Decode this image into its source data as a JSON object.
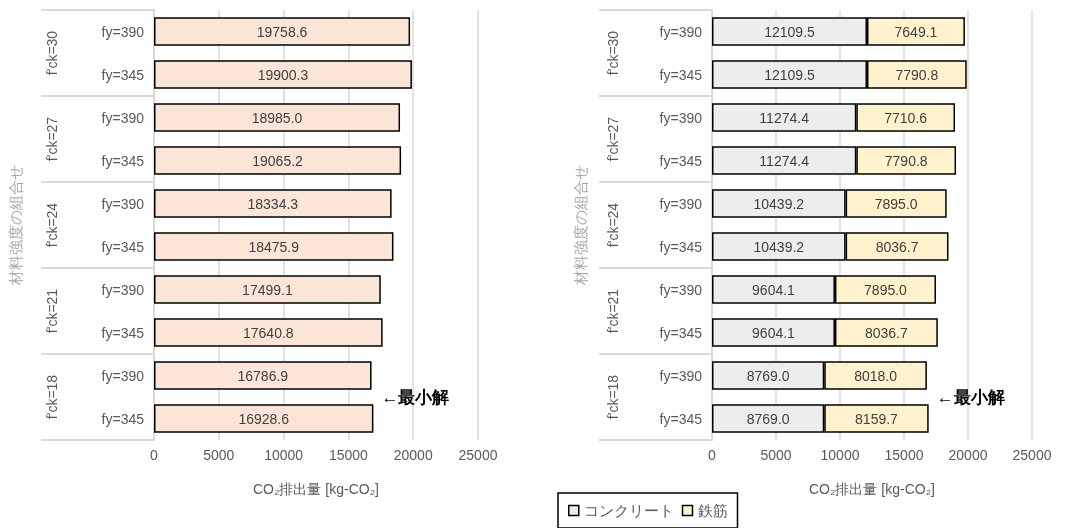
{
  "chart_data": [
    {
      "type": "bar",
      "orientation": "horizontal",
      "xlabel": "CO₂排出量 [kg-CO₂]",
      "ylabel": "材料強度の組合せ",
      "categories": [
        "fy=390",
        "fy=345",
        "fy=390",
        "fy=345",
        "fy=390",
        "fy=345",
        "fy=390",
        "fy=345",
        "fy=390",
        "fy=345"
      ],
      "values": [
        19758.6,
        19900.3,
        18985.0,
        19065.2,
        18334.3,
        18475.9,
        17499.1,
        17640.8,
        16786.9,
        16928.6
      ],
      "value_labels": [
        "19758.6",
        "19900.3",
        "18985.0",
        "19065.2",
        "18334.3",
        "18475.9",
        "17499.1",
        "17640.8",
        "16786.9",
        "16928.6"
      ],
      "color": "#fbe5d6",
      "xlim": [
        0,
        25000
      ],
      "xticks": [
        0,
        5000,
        10000,
        15000,
        20000,
        25000
      ],
      "grid": "x",
      "annotations": [
        "f'ck=30",
        "f'ck=27",
        "f'ck=24",
        "f'ck=21",
        "f'ck=18",
        "←最小解"
      ]
    },
    {
      "type": "bar",
      "orientation": "horizontal",
      "stacked": true,
      "xlabel": "CO₂排出量 [kg-CO₂]",
      "ylabel": "材料強度の組合せ",
      "categories": [
        "fy=390",
        "fy=345",
        "fy=390",
        "fy=345",
        "fy=390",
        "fy=345",
        "fy=390",
        "fy=345",
        "fy=390",
        "fy=345"
      ],
      "series": [
        {
          "name": "コンクリート",
          "color": "#ededed",
          "values": [
            12109.5,
            12109.5,
            11274.4,
            11274.4,
            10439.2,
            10439.2,
            9604.1,
            9604.1,
            8769.0,
            8769.0
          ],
          "value_labels": [
            "12109.5",
            "12109.5",
            "11274.4",
            "11274.4",
            "10439.2",
            "10439.2",
            "9604.1",
            "9604.1",
            "8769.0",
            "8769.0"
          ]
        },
        {
          "name": "鉄筋",
          "color": "#fff2cc",
          "values": [
            7649.1,
            7790.8,
            7710.6,
            7790.8,
            7895.0,
            8036.7,
            7895.0,
            8036.7,
            8018.0,
            8159.7
          ],
          "value_labels": [
            "7649.1",
            "7790.8",
            "7710.6",
            "7790.8",
            "7895.0",
            "8036.7",
            "7895.0",
            "8036.7",
            "8018.0",
            "8159.7"
          ]
        }
      ],
      "xlim": [
        0,
        25000
      ],
      "xticks": [
        0,
        5000,
        10000,
        15000,
        20000,
        25000
      ],
      "grid": "x",
      "legend": "bottom left",
      "annotations": [
        "f'ck=30",
        "f'ck=27",
        "f'ck=24",
        "f'ck=21",
        "f'ck=18",
        "←最小解"
      ]
    }
  ]
}
